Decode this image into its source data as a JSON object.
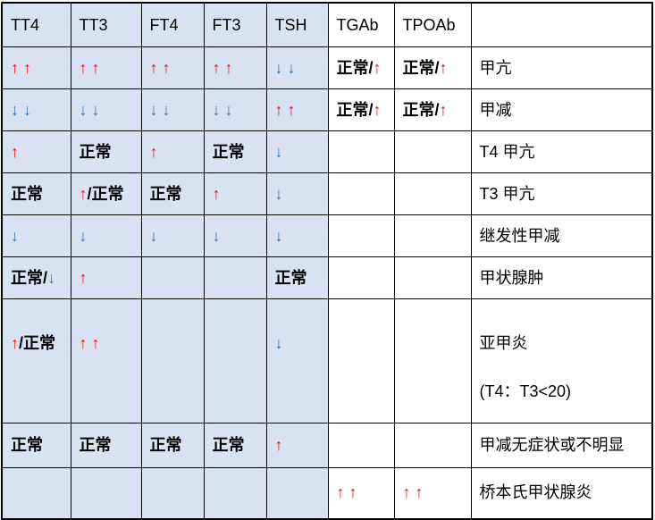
{
  "colors": {
    "red_arrow": "#ee1111",
    "blue_arrow": "#2e74b5",
    "cell_blue_background": "#d9e2f3",
    "grid_line": "#000000"
  },
  "table": {
    "header": [
      "TT4",
      "TT3",
      "FT4",
      "FT3",
      "TSH",
      "TGAb",
      "TPOAb",
      ""
    ],
    "rows": [
      {
        "condition": "甲亢",
        "cells": [
          {
            "segs": [
              {
                "text": "↑ ↑",
                "style": "up"
              }
            ]
          },
          {
            "segs": [
              {
                "text": "↑ ↑",
                "style": "up"
              }
            ]
          },
          {
            "segs": [
              {
                "text": "↑ ↑",
                "style": "up"
              }
            ]
          },
          {
            "segs": [
              {
                "text": "↑ ↑",
                "style": "up"
              }
            ]
          },
          {
            "segs": [
              {
                "text": "↓ ↓",
                "style": "down"
              }
            ]
          },
          {
            "segs": [
              {
                "text": "正常/",
                "style": "normal"
              },
              {
                "text": "↑",
                "style": "up"
              }
            ]
          },
          {
            "segs": [
              {
                "text": "正常/",
                "style": "normal"
              },
              {
                "text": "↑",
                "style": "up"
              }
            ]
          },
          {
            "segs": [
              {
                "text": "甲亢",
                "style": "normal"
              }
            ]
          }
        ]
      },
      {
        "condition": "甲减",
        "cells": [
          {
            "segs": [
              {
                "text": "↓ ↓",
                "style": "down"
              }
            ]
          },
          {
            "segs": [
              {
                "text": "↓ ↓",
                "style": "down"
              }
            ]
          },
          {
            "segs": [
              {
                "text": "↓ ↓",
                "style": "down"
              }
            ]
          },
          {
            "segs": [
              {
                "text": "↓ ↓",
                "style": "down"
              }
            ]
          },
          {
            "segs": [
              {
                "text": "↑ ↑",
                "style": "up"
              }
            ]
          },
          {
            "segs": [
              {
                "text": "正常/",
                "style": "normal"
              },
              {
                "text": "↑",
                "style": "up"
              }
            ]
          },
          {
            "segs": [
              {
                "text": "正常/",
                "style": "normal"
              },
              {
                "text": "↑",
                "style": "up"
              }
            ]
          },
          {
            "segs": [
              {
                "text": "甲减",
                "style": "normal"
              }
            ]
          }
        ]
      },
      {
        "condition": "T4 甲亢",
        "cells": [
          {
            "segs": [
              {
                "text": "↑",
                "style": "up"
              }
            ]
          },
          {
            "segs": [
              {
                "text": "正常",
                "style": "normal"
              }
            ]
          },
          {
            "segs": [
              {
                "text": "↑",
                "style": "up"
              }
            ]
          },
          {
            "segs": [
              {
                "text": "正常",
                "style": "normal"
              }
            ]
          },
          {
            "segs": [
              {
                "text": "↓",
                "style": "down"
              }
            ]
          },
          {
            "segs": []
          },
          {
            "segs": []
          },
          {
            "segs": [
              {
                "text": "T4 甲亢",
                "style": "normal"
              }
            ]
          }
        ]
      },
      {
        "condition": "T3 甲亢",
        "cells": [
          {
            "segs": [
              {
                "text": "正常",
                "style": "normal"
              }
            ]
          },
          {
            "segs": [
              {
                "text": "↑",
                "style": "up"
              },
              {
                "text": "/正常",
                "style": "normal"
              }
            ]
          },
          {
            "segs": [
              {
                "text": "正常",
                "style": "normal"
              }
            ]
          },
          {
            "segs": [
              {
                "text": "↑",
                "style": "up"
              }
            ]
          },
          {
            "segs": [
              {
                "text": "↓",
                "style": "down"
              }
            ]
          },
          {
            "segs": []
          },
          {
            "segs": []
          },
          {
            "segs": [
              {
                "text": "T3 甲亢",
                "style": "normal"
              }
            ]
          }
        ]
      },
      {
        "condition": "继发性甲减",
        "cells": [
          {
            "segs": [
              {
                "text": "↓",
                "style": "down"
              }
            ]
          },
          {
            "segs": [
              {
                "text": "↓",
                "style": "down"
              }
            ]
          },
          {
            "segs": [
              {
                "text": "↓",
                "style": "down"
              }
            ]
          },
          {
            "segs": [
              {
                "text": "↓",
                "style": "down"
              }
            ]
          },
          {
            "segs": [
              {
                "text": "↓",
                "style": "down"
              }
            ]
          },
          {
            "segs": []
          },
          {
            "segs": []
          },
          {
            "segs": [
              {
                "text": "继发性甲减",
                "style": "normal"
              }
            ]
          }
        ]
      },
      {
        "condition": "甲状腺肿",
        "cells": [
          {
            "segs": [
              {
                "text": "正常/",
                "style": "normal"
              },
              {
                "text": "↓",
                "style": "down"
              }
            ]
          },
          {
            "segs": [
              {
                "text": "↑",
                "style": "up"
              }
            ]
          },
          {
            "segs": []
          },
          {
            "segs": []
          },
          {
            "segs": [
              {
                "text": "正常",
                "style": "normal"
              }
            ]
          },
          {
            "segs": []
          },
          {
            "segs": []
          },
          {
            "segs": [
              {
                "text": "甲状腺肿",
                "style": "normal"
              }
            ]
          }
        ]
      },
      {
        "condition": "亚甲炎",
        "cells": [
          {
            "segs": [
              {
                "text": "↑",
                "style": "up"
              },
              {
                "text": "/正常",
                "style": "normal"
              }
            ]
          },
          {
            "segs": [
              {
                "text": "↑ ↑",
                "style": "up"
              }
            ]
          },
          {
            "segs": []
          },
          {
            "segs": []
          },
          {
            "segs": [
              {
                "text": "↓",
                "style": "down"
              }
            ]
          },
          {
            "segs": []
          },
          {
            "segs": []
          },
          {
            "segs": [
              {
                "text": "亚甲炎",
                "style": "normal"
              },
              {
                "style": "break"
              },
              {
                "style": "break"
              },
              {
                "text": "(T4：T3<20)",
                "style": "normal"
              }
            ]
          }
        ]
      },
      {
        "condition": "甲减无症状或不明显",
        "cells": [
          {
            "segs": [
              {
                "text": "正常",
                "style": "normal"
              }
            ]
          },
          {
            "segs": [
              {
                "text": "正常",
                "style": "normal"
              }
            ]
          },
          {
            "segs": [
              {
                "text": "正常",
                "style": "normal"
              }
            ]
          },
          {
            "segs": [
              {
                "text": "正常",
                "style": "normal"
              }
            ]
          },
          {
            "segs": [
              {
                "text": "↑",
                "style": "up"
              }
            ]
          },
          {
            "segs": []
          },
          {
            "segs": []
          },
          {
            "segs": [
              {
                "text": "甲减无症状或不明显",
                "style": "normal"
              }
            ]
          }
        ]
      },
      {
        "condition": "桥本氏甲状腺炎",
        "cells": [
          {
            "segs": []
          },
          {
            "segs": []
          },
          {
            "segs": []
          },
          {
            "segs": []
          },
          {
            "segs": []
          },
          {
            "segs": [
              {
                "text": "↑ ↑",
                "style": "up"
              }
            ]
          },
          {
            "segs": [
              {
                "text": "↑ ↑",
                "style": "up"
              }
            ]
          },
          {
            "segs": [
              {
                "text": "桥本氏甲状腺炎",
                "style": "normal"
              }
            ]
          }
        ]
      }
    ]
  }
}
